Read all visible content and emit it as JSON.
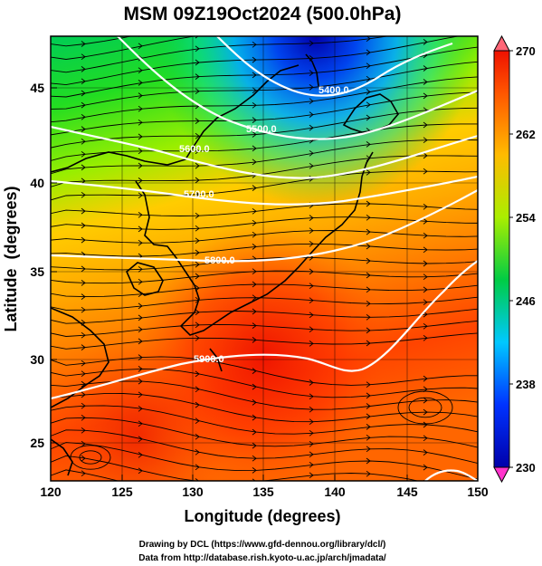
{
  "title": "MSM 09Z19Oct2024 (500.0hPa)",
  "x_axis": {
    "label": "Longitude (degrees)",
    "ticks": [
      "120",
      "125",
      "130",
      "135",
      "140",
      "145",
      "150"
    ]
  },
  "y_axis": {
    "label": "Latitude  (degrees)",
    "ticks": [
      "25",
      "30",
      "35",
      "40",
      "45"
    ]
  },
  "colorbar": {
    "ticks": [
      "270",
      "262",
      "254",
      "246",
      "238",
      "230"
    ]
  },
  "contour_labels": [
    "5400.0",
    "5500.0",
    "5600.0",
    "5700.0",
    "5800.0",
    "5900.0"
  ],
  "credits": {
    "line1": "Drawing by DCL (https://www.gfd-dennou.org/library/dcl/)",
    "line2": "Data from http://database.rish.kyoto-u.ac.jp/arch/jmadata/"
  },
  "chart_data": {
    "type": "map",
    "domain": {
      "lon_range": [
        120,
        150
      ],
      "lat_range": [
        22.5,
        47.7
      ]
    },
    "field": "temperature (K), shaded",
    "color_scale": {
      "min": 230,
      "max": 270,
      "colors": [
        "#ff00cc",
        "#0000cc",
        "#00c8ff",
        "#00cc33",
        "#ccff00",
        "#ff8800",
        "#ee1100"
      ]
    },
    "contours": "geopotential height (m)",
    "contour_levels": [
      5400,
      5500,
      5600,
      5700,
      5800,
      5900
    ],
    "vectors": "wind streamlines"
  }
}
